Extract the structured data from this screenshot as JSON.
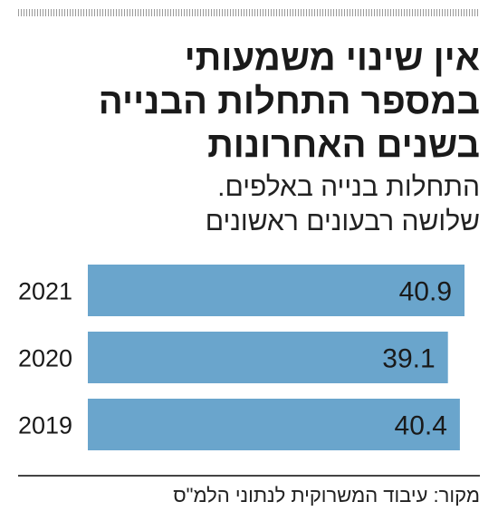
{
  "header": {
    "title_lines": [
      "אין שינוי משמעותי",
      "במספר התחלות הבנייה",
      "בשנים האחרונות"
    ],
    "subtitle_lines": [
      "התחלות בנייה באלפים.",
      "שלושה רבעונים ראשונים"
    ]
  },
  "chart_data": {
    "type": "bar",
    "orientation": "horizontal",
    "categories": [
      "2021",
      "2020",
      "2019"
    ],
    "values": [
      40.9,
      39.1,
      40.4
    ],
    "value_labels": [
      "40.9",
      "39.1",
      "40.4"
    ],
    "title": "אין שינוי משמעותי במספר התחלות הבנייה בשנים האחרונות",
    "subtitle": "התחלות בנייה באלפים. שלושה רבעונים ראשונים",
    "xlim": [
      0,
      40.9
    ],
    "grid": false,
    "legend": "none",
    "bar_color": "#6aa5cc"
  },
  "footer": {
    "source": "מקור: עיבוד המשרוקית לנתוני הלמ\"ס"
  }
}
